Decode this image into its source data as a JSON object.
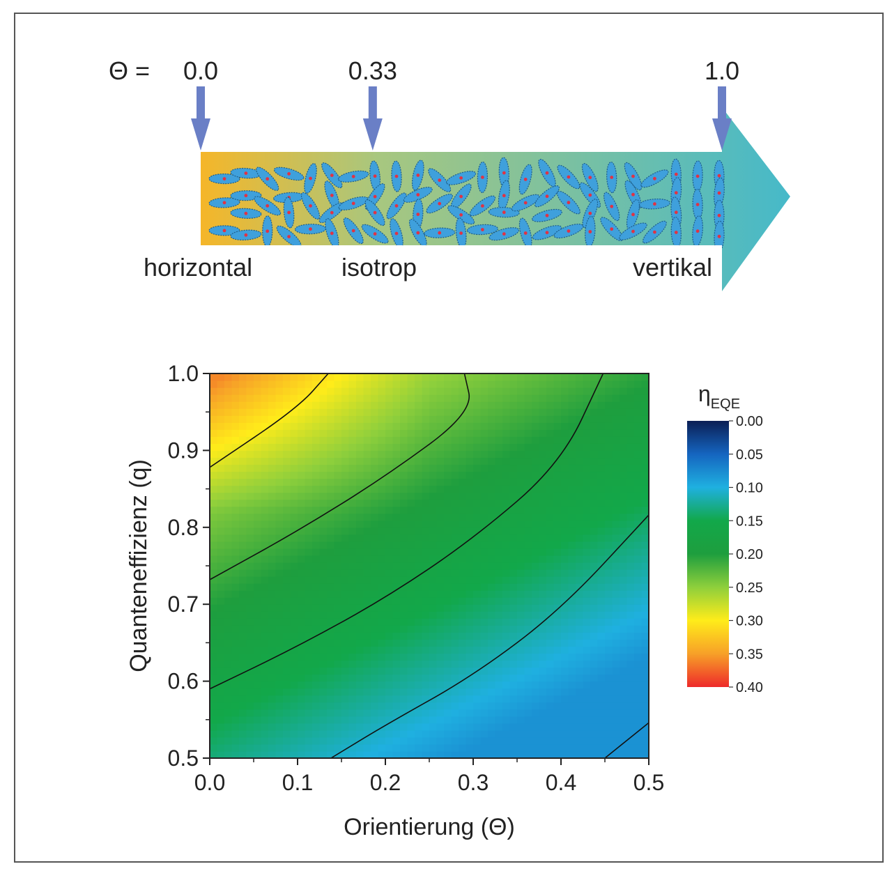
{
  "orientation_scale": {
    "theta_label": "Θ =",
    "markers": [
      {
        "value_label": "0.0",
        "theta": 0.0
      },
      {
        "value_label": "0.33",
        "theta": 0.33
      },
      {
        "value_label": "1.0",
        "theta": 1.0
      }
    ],
    "regimes": [
      "horizontal",
      "isotrop",
      "vertikal"
    ],
    "gradient_colors": [
      "#f5b629",
      "#a8c77f",
      "#46b9c9"
    ],
    "arrow_color": "#6a7fc6",
    "molecule_color": "#3fa0dc",
    "molecule_center_color": "#e03344"
  },
  "chart_data": {
    "type": "heatmap",
    "xlabel": "Orientierung (Θ)",
    "ylabel": "Quanteneffizienz (q)",
    "xlim": [
      0.0,
      0.5
    ],
    "ylim": [
      0.5,
      1.0
    ],
    "x_ticks": [
      "0.0",
      "0.1",
      "0.2",
      "0.3",
      "0.4",
      "0.5"
    ],
    "y_ticks": [
      "0.5",
      "0.6",
      "0.7",
      "0.8",
      "0.9",
      "1.0"
    ],
    "colorbar": {
      "label": "η",
      "label_sub": "EQE",
      "range": [
        0.0,
        0.4
      ],
      "ticks": [
        "0.00",
        "0.05",
        "0.10",
        "0.15",
        "0.20",
        "0.25",
        "0.30",
        "0.35",
        "0.40"
      ],
      "stops": [
        {
          "v": 0.0,
          "c": "#0b1f55"
        },
        {
          "v": 0.05,
          "c": "#1565c0"
        },
        {
          "v": 0.1,
          "c": "#1fb0e0"
        },
        {
          "v": 0.15,
          "c": "#12a84a"
        },
        {
          "v": 0.2,
          "c": "#1e9e3e"
        },
        {
          "v": 0.25,
          "c": "#8ecf3c"
        },
        {
          "v": 0.3,
          "c": "#ffec1a"
        },
        {
          "v": 0.35,
          "c": "#f7a028"
        },
        {
          "v": 0.4,
          "c": "#ee2a2a"
        }
      ]
    },
    "contours": [
      {
        "points": [
          [
            0.0,
            0.878
          ],
          [
            0.1,
            0.955
          ],
          [
            0.135,
            1.0
          ]
        ]
      },
      {
        "points": [
          [
            0.0,
            0.732
          ],
          [
            0.1,
            0.795
          ],
          [
            0.2,
            0.866
          ],
          [
            0.3,
            0.95
          ],
          [
            0.29,
            1.0
          ]
        ]
      },
      {
        "points": [
          [
            0.0,
            0.59
          ],
          [
            0.1,
            0.645
          ],
          [
            0.2,
            0.708
          ],
          [
            0.3,
            0.785
          ],
          [
            0.4,
            0.883
          ],
          [
            0.448,
            1.0
          ]
        ]
      },
      {
        "points": [
          [
            0.138,
            0.5
          ],
          [
            0.2,
            0.543
          ],
          [
            0.3,
            0.607
          ],
          [
            0.4,
            0.693
          ],
          [
            0.5,
            0.816
          ]
        ]
      },
      {
        "points": [
          [
            0.45,
            0.5
          ],
          [
            0.5,
            0.546
          ]
        ]
      }
    ]
  }
}
